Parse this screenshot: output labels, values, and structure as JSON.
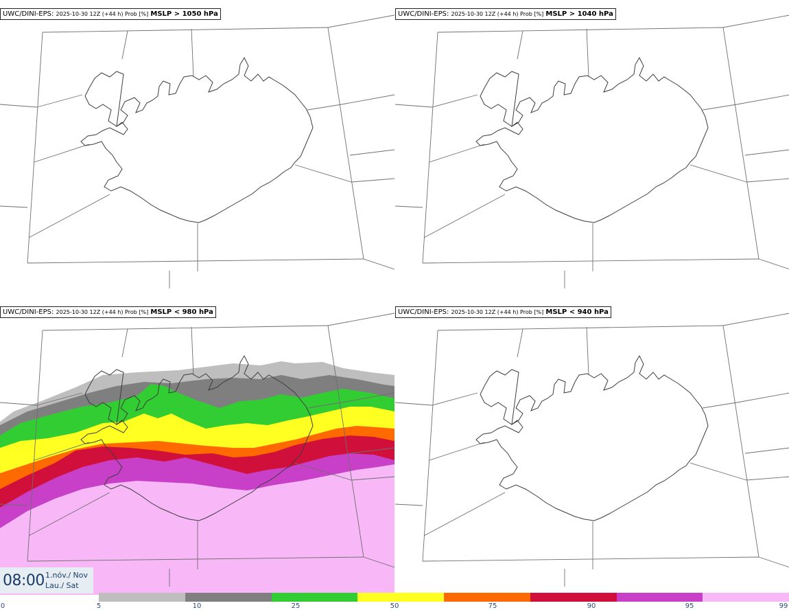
{
  "panels": [
    {
      "model": "UWC/DINI-EPS",
      "run": "2025-10-30 12Z (+44 h) Prob [%]",
      "field": "MSLP > 1050 hPa"
    },
    {
      "model": "UWC/DINI-EPS",
      "run": "2025-10-30 12Z (+44 h) Prob [%]",
      "field": "MSLP > 1040 hPa"
    },
    {
      "model": "UWC/DINI-EPS",
      "run": "2025-10-30 12Z (+44 h) Prob [%]",
      "field": "MSLP < 980 hPa"
    },
    {
      "model": "UWC/DINI-EPS",
      "run": "2025-10-30 12Z (+44 h) Prob [%]",
      "field": "MSLP < 940 hPa"
    }
  ],
  "valid_time": {
    "clock": "08:00",
    "date_line1": "1.nóv./ Nov",
    "date_line2": "Lau./ Sat"
  },
  "legend": {
    "labels": [
      "0",
      "5",
      "10",
      "25",
      "50",
      "75",
      "90",
      "95",
      "99"
    ],
    "colors": [
      "#bebebe",
      "#7f7f7f",
      "#32cd32",
      "#ffff22",
      "#ff6a00",
      "#d0103a",
      "#c840c8",
      "#f8b8f8"
    ]
  }
}
